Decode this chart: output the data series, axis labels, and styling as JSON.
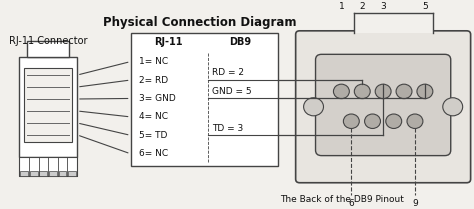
{
  "title": "Physical Connection Diagram",
  "rj11_label": "RJ-11 Connector",
  "box_rj11_header": "RJ-11",
  "box_db9_header": "DB9",
  "rj11_pins": [
    "1= NC",
    "2= RD",
    "3= GND",
    "4= NC",
    "5= TD",
    "6= NC"
  ],
  "db9_signals": [
    "RD = 2",
    "GND = 5",
    "TD = 3"
  ],
  "db9_signal_pin_indices": [
    1,
    2,
    4
  ],
  "footer": "The Back of the DB9 Pinout",
  "bg_color": "#f2f0ec",
  "line_color": "#444444",
  "text_color": "#111111"
}
